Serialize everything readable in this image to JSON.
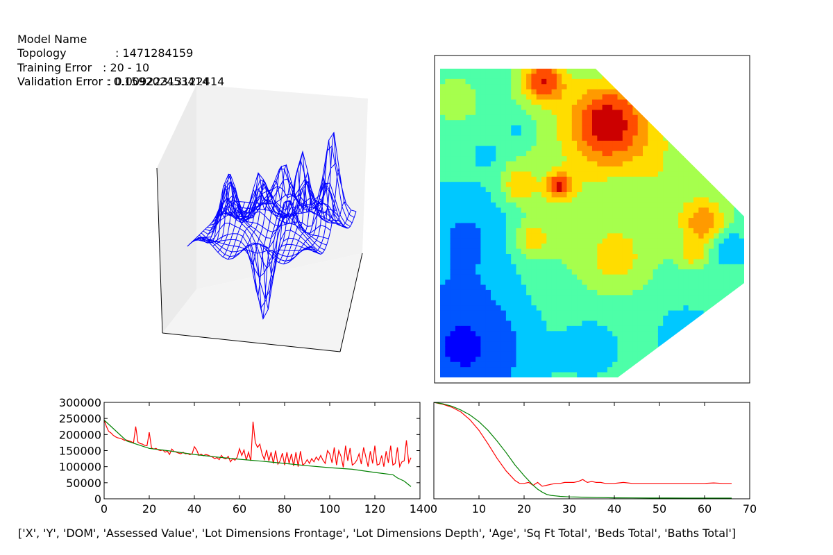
{
  "info": {
    "model_name_label": "Model Name",
    "model_name_value": ": 1471284159",
    "topology_label": "Topology",
    "topology_value": ": 20 - 10",
    "training_error_label": "Training Error",
    "training_error_value": ": 0.00922313122414",
    "validation_error_text": "Validation Error : 0.159202453414"
  },
  "features_text": "['X', 'Y', 'DOM', 'Assessed Value', 'Lot Dimensions Frontage', 'Lot Dimensions Depth', 'Age', 'Sq Ft Total', 'Beds Total', 'Baths Total']",
  "colors": {
    "wireframe": "#0000ff",
    "series_red": "#ff0000",
    "series_green": "#008000",
    "contour_levels": [
      "#0000ff",
      "#0055ff",
      "#00c8ff",
      "#4dffa8",
      "#a6ff4d",
      "#ffdd00",
      "#ff9a00",
      "#ff4d00",
      "#cc0000"
    ]
  },
  "chart_data": [
    {
      "type": "surface-wireframe",
      "title": "",
      "xlabel": "",
      "ylabel": "",
      "zlabel": "",
      "grid": false
    },
    {
      "type": "heatmap",
      "subtype": "filled-contour",
      "title": "",
      "ticks_shown": false,
      "levels": 9
    },
    {
      "type": "line",
      "title": "",
      "xlim": [
        0,
        140
      ],
      "ylim": [
        0,
        300000
      ],
      "x_ticks": [
        "0",
        "20",
        "40",
        "60",
        "80",
        "100",
        "120",
        "140"
      ],
      "y_ticks": [
        "0",
        "50000",
        "100000",
        "150000",
        "200000",
        "250000",
        "300000"
      ],
      "series": [
        {
          "color": "red",
          "x": [
            0,
            1,
            2,
            3,
            4,
            5,
            6,
            7,
            8,
            9,
            10,
            11,
            12,
            13,
            14,
            15,
            16,
            17,
            18,
            19,
            20,
            21,
            22,
            23,
            24,
            25,
            26,
            27,
            28,
            29,
            30,
            31,
            32,
            33,
            34,
            35,
            36,
            37,
            38,
            39,
            40,
            41,
            42,
            43,
            44,
            45,
            46,
            47,
            48,
            49,
            50,
            51,
            52,
            53,
            54,
            55,
            56,
            57,
            58,
            59,
            60,
            61,
            62,
            63,
            64,
            65,
            66,
            67,
            68,
            69,
            70,
            71,
            72,
            73,
            74,
            75,
            76,
            77,
            78,
            79,
            80,
            81,
            82,
            83,
            84,
            85,
            86,
            87,
            88,
            89,
            90,
            91,
            92,
            93,
            94,
            95,
            96,
            97,
            98,
            99,
            100,
            101,
            102,
            103,
            104,
            105,
            106,
            107,
            108,
            109,
            110,
            111,
            112,
            113,
            114,
            115,
            116,
            117,
            118,
            119,
            120,
            121,
            122,
            123,
            124,
            125,
            126,
            127,
            128,
            129,
            130,
            131,
            132,
            133,
            134,
            135,
            136
          ],
          "values": [
            245000,
            225000,
            210000,
            205000,
            198000,
            193000,
            190000,
            188000,
            186000,
            182000,
            183000,
            180000,
            178000,
            174000,
            225000,
            176000,
            172000,
            170000,
            166000,
            165000,
            207000,
            158000,
            155000,
            157000,
            152000,
            150000,
            152000,
            145000,
            148000,
            138000,
            155000,
            147000,
            145000,
            142000,
            140000,
            145000,
            140000,
            141000,
            137000,
            140000,
            162000,
            152000,
            135000,
            139000,
            134000,
            138000,
            136000,
            133000,
            130000,
            125000,
            128000,
            122000,
            135000,
            126000,
            124000,
            132000,
            115000,
            125000,
            120000,
            130000,
            156000,
            135000,
            152000,
            120000,
            145000,
            118000,
            240000,
            175000,
            160000,
            170000,
            140000,
            122000,
            152000,
            118000,
            145000,
            110000,
            150000,
            108000,
            118000,
            142000,
            105000,
            145000,
            110000,
            140000,
            102000,
            145000,
            100000,
            148000,
            105000,
            110000,
            122000,
            110000,
            125000,
            115000,
            130000,
            120000,
            135000,
            120000,
            110000,
            150000,
            140000,
            112000,
            160000,
            105000,
            150000,
            132000,
            98000,
            165000,
            118000,
            158000,
            105000,
            110000,
            120000,
            140000,
            108000,
            160000,
            130000,
            100000,
            148000,
            110000,
            165000,
            105000,
            108000,
            135000,
            100000,
            148000,
            112000,
            165000,
            105000,
            110000,
            160000,
            100000,
            115000,
            118000,
            182000,
            112000,
            128000
          ]
        },
        {
          "color": "green",
          "x": [
            0,
            10,
            20,
            30,
            40,
            50,
            60,
            70,
            80,
            90,
            100,
            110,
            120,
            128,
            130,
            133,
            136
          ],
          "values": [
            245000,
            180000,
            157000,
            148000,
            138000,
            130000,
            123000,
            117000,
            110000,
            103000,
            97000,
            92000,
            82000,
            75000,
            65000,
            55000,
            38000
          ]
        }
      ]
    },
    {
      "type": "line",
      "title": "",
      "xlim": [
        0,
        70
      ],
      "x_ticks": [
        "0",
        "10",
        "20",
        "30",
        "40",
        "50",
        "60",
        "70"
      ],
      "y_ticks_shown": false,
      "series": [
        {
          "color": "red",
          "x": [
            0,
            2,
            4,
            6,
            8,
            10,
            12,
            14,
            16,
            18,
            19,
            20,
            21,
            22,
            23,
            24,
            25,
            26,
            27,
            28,
            29,
            30,
            31,
            32,
            33,
            34,
            35,
            36,
            37,
            38,
            40,
            42,
            44,
            46,
            48,
            50,
            52,
            54,
            56,
            58,
            60,
            62,
            64,
            66
          ],
          "values": [
            1.0,
            0.98,
            0.95,
            0.9,
            0.82,
            0.71,
            0.57,
            0.42,
            0.29,
            0.19,
            0.16,
            0.16,
            0.17,
            0.14,
            0.17,
            0.13,
            0.14,
            0.15,
            0.16,
            0.16,
            0.17,
            0.17,
            0.17,
            0.18,
            0.2,
            0.17,
            0.18,
            0.17,
            0.17,
            0.16,
            0.16,
            0.17,
            0.16,
            0.16,
            0.16,
            0.16,
            0.16,
            0.16,
            0.16,
            0.16,
            0.16,
            0.165,
            0.16,
            0.16
          ]
        },
        {
          "color": "green",
          "x": [
            0,
            2,
            4,
            6,
            8,
            10,
            12,
            14,
            16,
            18,
            20,
            22,
            23,
            24,
            25,
            26,
            27,
            28,
            30,
            32,
            34,
            36,
            38,
            40,
            44,
            48,
            52,
            56,
            60,
            64,
            66
          ],
          "values": [
            1.0,
            0.985,
            0.96,
            0.92,
            0.87,
            0.8,
            0.71,
            0.6,
            0.48,
            0.35,
            0.24,
            0.14,
            0.1,
            0.07,
            0.045,
            0.035,
            0.03,
            0.025,
            0.02,
            0.018,
            0.015,
            0.013,
            0.012,
            0.01,
            0.009,
            0.008,
            0.008,
            0.007,
            0.007,
            0.007,
            0.007
          ]
        }
      ]
    }
  ]
}
